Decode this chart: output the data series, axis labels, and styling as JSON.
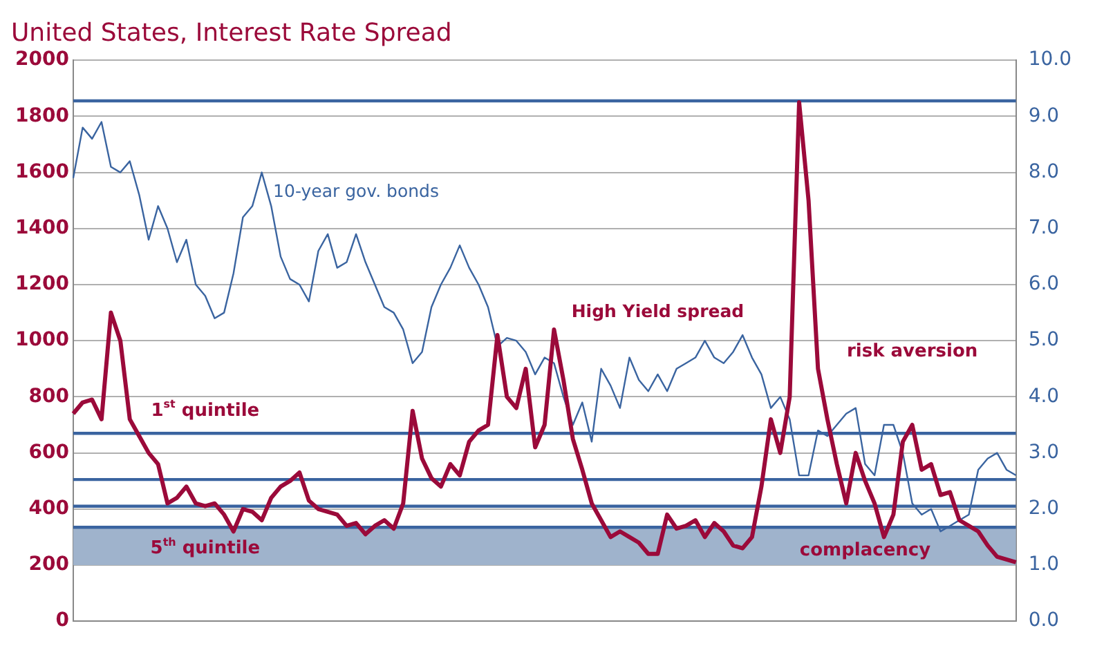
{
  "chart_data": {
    "type": "line",
    "title": "United States, Interest Rate Spread",
    "categories": [
      null,
      null,
      null,
      null,
      null,
      null,
      null,
      null,
      null,
      null,
      null,
      null,
      null,
      null,
      null,
      null,
      null,
      null,
      null,
      null,
      null,
      null,
      null,
      null,
      null,
      null,
      null,
      null,
      null,
      null,
      null,
      null,
      null,
      null,
      null,
      null,
      null,
      null,
      null,
      null,
      null,
      null,
      null,
      null,
      null,
      null,
      null,
      null,
      null,
      null,
      null,
      null,
      null,
      null,
      null,
      null,
      null,
      null,
      null,
      null,
      null,
      null,
      null,
      null,
      null,
      null,
      null,
      null,
      null,
      null,
      null,
      null,
      null,
      null,
      null,
      null,
      null,
      null,
      null,
      null,
      null,
      null,
      null,
      null,
      null,
      null,
      null,
      null,
      null,
      null,
      null,
      null,
      null,
      null,
      null,
      null,
      null,
      null,
      null,
      null,
      null
    ],
    "series": [
      {
        "name": "High Yield spread",
        "color": "#9b0a3a",
        "values": [
          740,
          780,
          790,
          720,
          1100,
          1000,
          720,
          660,
          600,
          560,
          420,
          440,
          480,
          420,
          410,
          420,
          380,
          320,
          400,
          390,
          360,
          440,
          480,
          500,
          530,
          430,
          400,
          390,
          380,
          340,
          350,
          310,
          340,
          360,
          330,
          420,
          750,
          580,
          510,
          480,
          560,
          520,
          640,
          680,
          700,
          1020,
          800,
          760,
          900,
          620,
          700,
          1040,
          860,
          650,
          540,
          420,
          360,
          300,
          320,
          300,
          280,
          240,
          240,
          380,
          330,
          340,
          360,
          300,
          350,
          320,
          270,
          260,
          300,
          480,
          720,
          600,
          800,
          1850,
          1500,
          900,
          720,
          560,
          420,
          600,
          500,
          420,
          300,
          380,
          640,
          700,
          540,
          560,
          450,
          460,
          360,
          340,
          320,
          270,
          230,
          220,
          210
        ]
      },
      {
        "name": "10-year gov. bonds",
        "color": "#3a64a0",
        "axis": "y2",
        "values": [
          7.9,
          8.8,
          8.6,
          8.9,
          8.1,
          8.0,
          8.2,
          7.6,
          6.8,
          7.4,
          7.0,
          6.4,
          6.8,
          6.0,
          5.8,
          5.4,
          5.5,
          6.2,
          7.2,
          7.4,
          8.0,
          7.4,
          6.5,
          6.1,
          6.0,
          5.7,
          6.6,
          6.9,
          6.3,
          6.4,
          6.9,
          6.4,
          6.0,
          5.6,
          5.5,
          5.2,
          4.6,
          4.8,
          5.6,
          6.0,
          6.3,
          6.7,
          6.3,
          6.0,
          5.6,
          4.9,
          5.05,
          5.0,
          4.8,
          4.4,
          4.7,
          4.6,
          4.0,
          3.5,
          3.9,
          3.2,
          4.5,
          4.2,
          3.8,
          4.7,
          4.3,
          4.1,
          4.4,
          4.1,
          4.5,
          4.6,
          4.7,
          5.0,
          4.7,
          4.6,
          4.8,
          5.1,
          4.7,
          4.4,
          3.8,
          4.0,
          3.6,
          2.6,
          2.6,
          3.4,
          3.3,
          3.5,
          3.7,
          3.8,
          2.8,
          2.6,
          3.5,
          3.5,
          3.0,
          2.1,
          1.9,
          2.0,
          1.6,
          1.7,
          1.8,
          1.9,
          2.7,
          2.9,
          3.0,
          2.7,
          2.6
        ]
      }
    ],
    "ylim": [
      0,
      2000
    ],
    "yticks": [
      0,
      200,
      400,
      600,
      800,
      1000,
      1200,
      1400,
      1600,
      1800,
      2000
    ],
    "y2lim": [
      0,
      10
    ],
    "y2ticks": [
      {
        "value": 0,
        "label": "0.0"
      },
      {
        "value": 1,
        "label": "1.0"
      },
      {
        "value": 2,
        "label": "2.0"
      },
      {
        "value": 3,
        "label": "3.0"
      },
      {
        "value": 4,
        "label": "4.0"
      },
      {
        "value": 5,
        "label": "5.0"
      },
      {
        "value": 6,
        "label": "6.0"
      },
      {
        "value": 7,
        "label": "7.0"
      },
      {
        "value": 8,
        "label": "8.0"
      },
      {
        "value": 9,
        "label": "9.0"
      },
      {
        "value": 10,
        "label": "10.0"
      }
    ],
    "ref_lines": [
      {
        "axis": "y",
        "value": 1855,
        "color": "#3a64a0"
      },
      {
        "axis": "y",
        "value": 670,
        "label": "1$^{st}$ quintile",
        "color": "#3a64a0"
      },
      {
        "axis": "y",
        "value": 505,
        "color": "#3a64a0"
      },
      {
        "axis": "y",
        "value": 410,
        "color": "#3a64a0"
      },
      {
        "axis": "y",
        "value": 335,
        "color": "#3a64a0"
      }
    ],
    "bands": [
      {
        "axis": "y",
        "from": 200,
        "to": 335,
        "label": "5$^{th}$ quintile",
        "color": "#9fb3cc"
      }
    ],
    "annotations": [
      "risk aversion",
      "complacency"
    ],
    "grid": "y",
    "legend": false,
    "marker": "none",
    "line_style": "solid"
  }
}
